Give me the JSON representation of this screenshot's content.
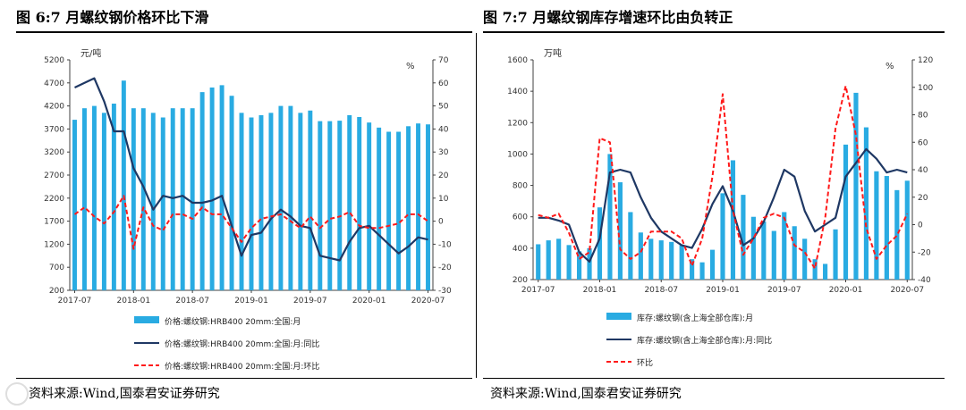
{
  "left_panel": {
    "title": "图 6:7 月螺纹钢价格环比下滑",
    "source": "资料来源:Wind,国泰君安证券研究"
  },
  "right_panel": {
    "title": "图 7:7 月螺纹钢库存增速环比由负转正",
    "source": "资料来源:Wind,国泰君安证券研究"
  },
  "colors": {
    "bar": "#29abe2",
    "line": "#1f3864",
    "dashed": "#ff1a1a"
  },
  "chart_data": [
    {
      "type": "bar",
      "id": "rebar-price",
      "y_left_unit": "元/吨",
      "y_right_unit": "%",
      "ylim_left": [
        200,
        5200
      ],
      "yticks_left": [
        200,
        700,
        1200,
        1700,
        2200,
        2700,
        3200,
        3700,
        4200,
        4700,
        5200
      ],
      "ylim_right": [
        -30,
        70
      ],
      "yticks_right": [
        -30,
        -20,
        -10,
        0,
        10,
        20,
        30,
        40,
        50,
        60,
        70
      ],
      "x_tick_labels": [
        "2017-07",
        "2018-01",
        "2018-07",
        "2019-01",
        "2019-07",
        "2020-01",
        "2020-07"
      ],
      "categories": [
        "2017-07",
        "2017-08",
        "2017-09",
        "2017-10",
        "2017-11",
        "2017-12",
        "2018-01",
        "2018-02",
        "2018-03",
        "2018-04",
        "2018-05",
        "2018-06",
        "2018-07",
        "2018-08",
        "2018-09",
        "2018-10",
        "2018-11",
        "2018-12",
        "2019-01",
        "2019-02",
        "2019-03",
        "2019-04",
        "2019-05",
        "2019-06",
        "2019-07",
        "2019-08",
        "2019-09",
        "2019-10",
        "2019-11",
        "2019-12",
        "2020-01",
        "2020-02",
        "2020-03",
        "2020-04",
        "2020-05",
        "2020-06",
        "2020-07"
      ],
      "series": [
        {
          "name": "价格:螺纹钢:HRB400 20mm:全国:月",
          "axis": "left",
          "style": "bar",
          "values": [
            3900,
            4150,
            4200,
            4050,
            4250,
            4750,
            4150,
            4150,
            4050,
            3950,
            4150,
            4150,
            4150,
            4500,
            4600,
            4650,
            4420,
            4050,
            3950,
            4000,
            4050,
            4200,
            4200,
            4050,
            4100,
            3870,
            3870,
            3880,
            4000,
            3960,
            3840,
            3730,
            3640,
            3640,
            3760,
            3820,
            3800
          ]
        },
        {
          "name": "价格:螺纹钢:HRB400 20mm:全国:月:同比",
          "axis": "right",
          "style": "solid",
          "values": [
            58,
            60,
            62,
            52,
            39,
            39,
            23,
            15,
            5,
            11,
            10,
            11,
            8,
            8,
            9,
            11,
            -2,
            -15,
            -6,
            -5,
            1,
            5,
            2,
            -2,
            -3,
            -15,
            -16,
            -17,
            -9,
            -3,
            -2,
            -6,
            -10,
            -14,
            -11,
            -7,
            -8
          ]
        },
        {
          "name": "价格:螺纹钢:HRB400 20mm:全国:月:环比",
          "axis": "right",
          "style": "dashed",
          "values": [
            3,
            6,
            2,
            -1,
            4,
            11,
            -12,
            6,
            -2,
            -4,
            3,
            3,
            1,
            6,
            3,
            3,
            -3,
            -9,
            -3,
            1,
            2,
            3,
            0,
            -3,
            2,
            -3,
            1,
            2,
            4,
            -2,
            -3,
            -3,
            -2,
            -1,
            3,
            3,
            0
          ]
        }
      ],
      "legend": [
        "价格:螺纹钢:HRB400 20mm:全国:月",
        "价格:螺纹钢:HRB400 20mm:全国:月:同比",
        "价格:螺纹钢:HRB400 20mm:全国:月:环比"
      ]
    },
    {
      "type": "bar",
      "id": "rebar-inventory",
      "y_left_unit": "万吨",
      "y_right_unit": "%",
      "ylim_left": [
        200,
        1600
      ],
      "yticks_left": [
        200,
        400,
        600,
        800,
        1000,
        1200,
        1400,
        1600
      ],
      "ylim_right": [
        -40,
        120
      ],
      "yticks_right": [
        -40,
        -20,
        0,
        20,
        40,
        60,
        80,
        100,
        120
      ],
      "x_tick_labels": [
        "2017-07",
        "2018-01",
        "2018-07",
        "2019-01",
        "2019-07",
        "2020-01",
        "2020-07"
      ],
      "categories": [
        "2017-07",
        "2017-08",
        "2017-09",
        "2017-10",
        "2017-11",
        "2017-12",
        "2018-01",
        "2018-02",
        "2018-03",
        "2018-04",
        "2018-05",
        "2018-06",
        "2018-07",
        "2018-08",
        "2018-09",
        "2018-10",
        "2018-11",
        "2018-12",
        "2019-01",
        "2019-02",
        "2019-03",
        "2019-04",
        "2019-05",
        "2019-06",
        "2019-07",
        "2019-08",
        "2019-09",
        "2019-10",
        "2019-11",
        "2019-12",
        "2020-01",
        "2020-02",
        "2020-03",
        "2020-04",
        "2020-05",
        "2020-06",
        "2020-07"
      ],
      "series": [
        {
          "name": "库存:螺纹钢(含上海全部仓库):月",
          "axis": "left",
          "style": "bar",
          "values": [
            425,
            450,
            460,
            420,
            380,
            400,
            660,
            1000,
            820,
            630,
            500,
            460,
            450,
            440,
            420,
            330,
            310,
            390,
            750,
            960,
            740,
            600,
            570,
            510,
            630,
            540,
            460,
            330,
            300,
            520,
            1060,
            1390,
            1170,
            890,
            860,
            770,
            830
          ]
        },
        {
          "name": "库存:螺纹钢(含上海全部仓库):月:同比",
          "axis": "right",
          "style": "solid",
          "values": [
            5,
            5,
            3,
            0,
            -20,
            -27,
            -10,
            38,
            40,
            38,
            20,
            5,
            -5,
            -10,
            -15,
            -17,
            -3,
            15,
            28,
            10,
            -15,
            -10,
            2,
            20,
            40,
            35,
            10,
            -5,
            0,
            5,
            35,
            45,
            55,
            48,
            38,
            40,
            38
          ]
        },
        {
          "name": "环比",
          "axis": "right",
          "style": "dashed",
          "values": [
            7,
            5,
            8,
            -6,
            -25,
            -20,
            63,
            60,
            -18,
            -25,
            -20,
            -5,
            -5,
            -5,
            -10,
            -30,
            -10,
            35,
            95,
            10,
            -22,
            -10,
            5,
            8,
            5,
            -15,
            -20,
            -32,
            5,
            70,
            101,
            65,
            -2,
            -25,
            -15,
            -8,
            8
          ]
        }
      ],
      "legend": [
        "库存:螺纹钢(含上海全部仓库):月",
        "库存:螺纹钢(含上海全部仓库):月:同比",
        "环比"
      ]
    }
  ]
}
